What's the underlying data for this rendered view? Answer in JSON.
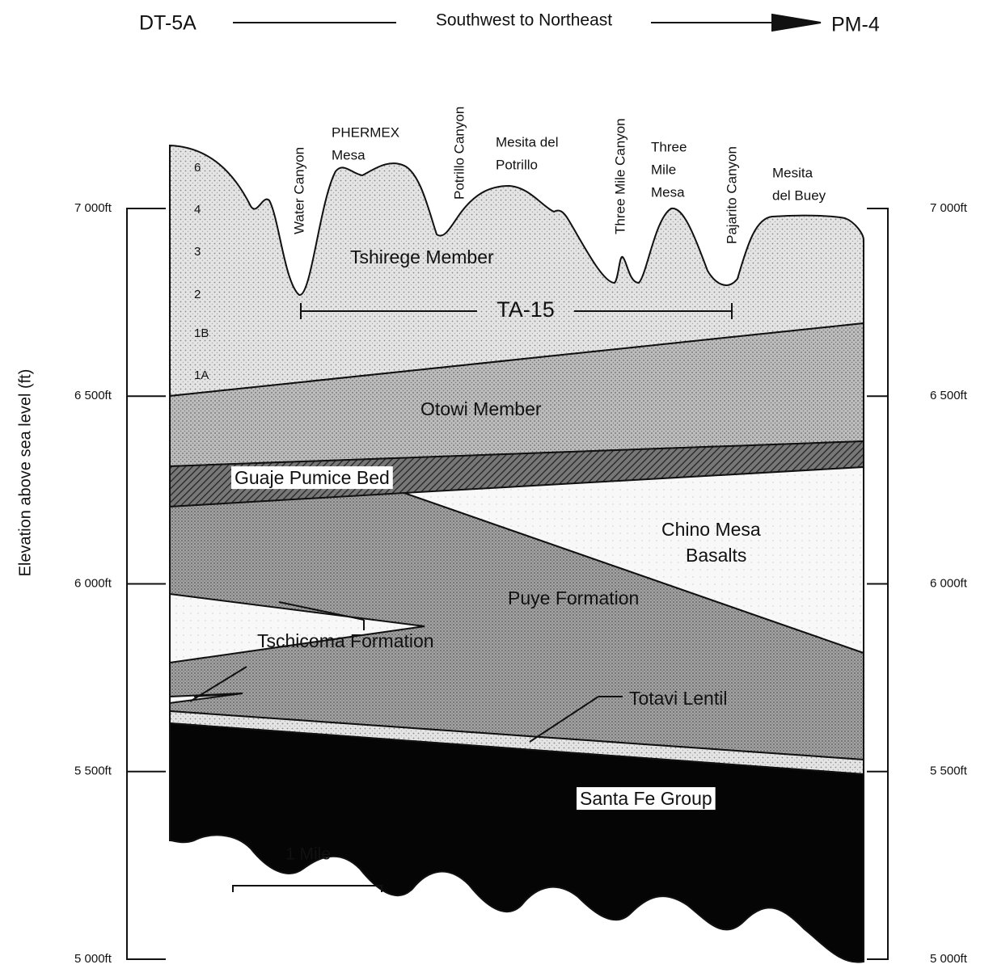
{
  "header": {
    "left_well": "DT-5A",
    "direction": "Southwest to Northeast",
    "right_well": "PM-4"
  },
  "axis_label": "Elevation above sea level (ft)",
  "elevations_left": [
    "7 000ft",
    "6 500ft",
    "6 000ft",
    "5 500ft",
    "5 000ft"
  ],
  "elevations_right": [
    "7 000ft",
    "6 500ft",
    "6 000ft",
    "5 500ft",
    "5 000ft"
  ],
  "units": [
    "6",
    "4",
    "3",
    "2",
    "1B",
    "1A"
  ],
  "landmarks": [
    {
      "lines": [
        "Water Canyon"
      ]
    },
    {
      "lines": [
        "PHERMEX",
        "Mesa"
      ]
    },
    {
      "lines": [
        "Potrillo Canyon"
      ]
    },
    {
      "lines": [
        "Mesita del",
        "Potrillo"
      ]
    },
    {
      "lines": [
        "Three Mile Canyon"
      ]
    },
    {
      "lines": [
        "Three",
        "Mile",
        "Mesa"
      ]
    },
    {
      "lines": [
        "Pajarito Canyon"
      ]
    },
    {
      "lines": [
        "Mesita",
        "del Buey"
      ]
    }
  ],
  "section_label": "TA-15",
  "formations": [
    {
      "lines": [
        "Tshirege Member"
      ]
    },
    {
      "lines": [
        "Otowi Member"
      ]
    },
    {
      "lines": [
        "Guaje Pumice Bed"
      ]
    },
    {
      "lines": [
        "Chino Mesa",
        "Basalts"
      ]
    },
    {
      "lines": [
        "Puye Formation"
      ]
    },
    {
      "lines": [
        "Tschicoma Formation"
      ]
    },
    {
      "lines": [
        "Totavi Lentil"
      ]
    },
    {
      "lines": [
        "Santa Fe Group"
      ]
    }
  ],
  "scale_label": "1 Mile"
}
